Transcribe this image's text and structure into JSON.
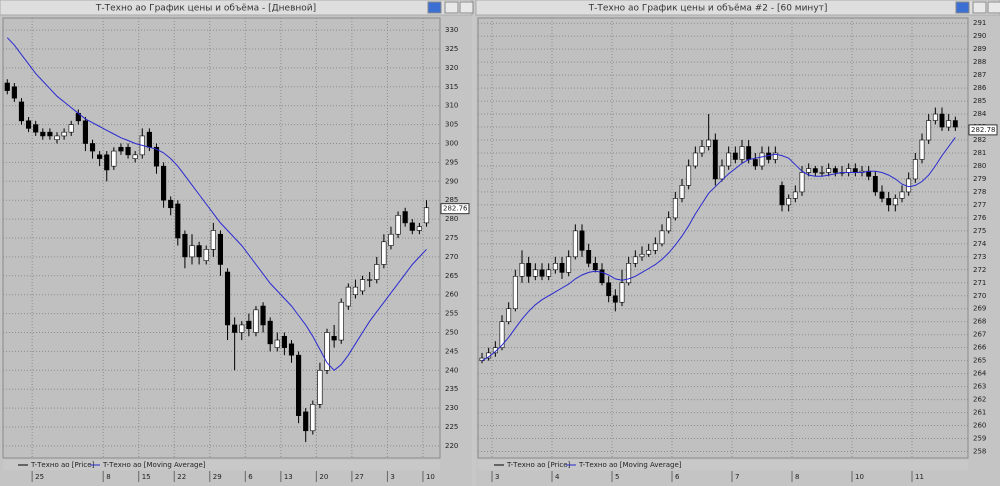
{
  "chart_data": [
    {
      "type": "candlestick",
      "title": "Т-Техно ао График цены и объёма - [Дневной]",
      "categories": [
        null,
        null,
        null,
        null,
        "25",
        null,
        null,
        null,
        null,
        null,
        null,
        null,
        null,
        null,
        "8",
        null,
        null,
        null,
        null,
        "15",
        null,
        null,
        null,
        null,
        "22",
        null,
        null,
        null,
        null,
        "29",
        null,
        null,
        null,
        null,
        "6",
        null,
        null,
        null,
        null,
        "13",
        null,
        null,
        null,
        null,
        "20",
        null,
        null,
        null,
        null,
        "27",
        null,
        null,
        null,
        null,
        "3",
        null,
        null,
        null,
        null,
        "10"
      ],
      "series": [
        {
          "name": "T-Техно ао [Price]",
          "color": "#000000",
          "open": [
            316,
            315,
            311,
            306,
            305,
            303,
            303,
            301,
            302,
            303,
            308,
            306,
            300,
            297,
            297,
            294,
            299,
            299,
            296,
            297,
            303,
            299,
            294,
            285,
            284,
            276,
            270,
            273,
            269,
            272,
            276,
            266,
            252,
            250,
            253,
            250,
            257,
            253,
            246,
            249,
            247,
            244,
            229,
            224,
            231,
            240,
            249,
            248,
            257,
            260,
            261,
            264,
            264,
            268,
            273,
            276,
            282,
            279,
            277,
            279
          ],
          "high": [
            317,
            316,
            312,
            307,
            306,
            304,
            304,
            303,
            304,
            306,
            309,
            307,
            301,
            298,
            298,
            299,
            300,
            300,
            298,
            304,
            304,
            300,
            295,
            286,
            285,
            277,
            276,
            274,
            273,
            279,
            277,
            267,
            254,
            253,
            255,
            257,
            258,
            254,
            250,
            250,
            248,
            245,
            230,
            232,
            242,
            251,
            252,
            259,
            263,
            264,
            265,
            266,
            270,
            276,
            278,
            282,
            283,
            280,
            279,
            285
          ],
          "low": [
            313,
            311,
            305,
            303,
            302,
            301,
            301,
            300,
            301,
            302,
            305,
            298,
            296,
            294,
            290,
            293,
            297,
            296,
            295,
            296,
            298,
            292,
            283,
            281,
            273,
            267,
            268,
            268,
            268,
            270,
            265,
            248,
            240,
            248,
            249,
            249,
            250,
            245,
            245,
            244,
            242,
            226,
            221,
            223,
            230,
            239,
            246,
            247,
            256,
            259,
            260,
            262,
            263,
            267,
            272,
            275,
            278,
            276,
            276,
            278
          ],
          "close": [
            314,
            312,
            306,
            304,
            303,
            302,
            302,
            302,
            303,
            305,
            306,
            300,
            298,
            296,
            293,
            298,
            298,
            297,
            297,
            302,
            299,
            294,
            285,
            283,
            275,
            270,
            273,
            270,
            272,
            277,
            268,
            252,
            250,
            252,
            251,
            256,
            252,
            247,
            248,
            246,
            244,
            228,
            224,
            231,
            240,
            250,
            248,
            258,
            262,
            262,
            264,
            264,
            268,
            274,
            276,
            281,
            279,
            277,
            278,
            283
          ]
        },
        {
          "name": "T-Техно ао [Moving Average]",
          "color": "#2a2ad0",
          "values": [
            328,
            326,
            323.5,
            321,
            318.5,
            316.5,
            314.5,
            312.5,
            311,
            309.5,
            308,
            306.5,
            305.5,
            304.5,
            303.5,
            302.5,
            301.5,
            300.8,
            300,
            299.5,
            299,
            298.5,
            297.5,
            296,
            294,
            291.5,
            289,
            286.5,
            284,
            281.5,
            279,
            277,
            275,
            273,
            270.5,
            268,
            265.5,
            263,
            261,
            259,
            257,
            254.5,
            252,
            249,
            245.5,
            242,
            240,
            241.5,
            244,
            247,
            250,
            253,
            255.5,
            258,
            260.5,
            263,
            265.5,
            268,
            270,
            272
          ]
        }
      ],
      "ylim": [
        216.8,
        333.2
      ],
      "yticks": [
        220,
        225,
        230,
        235,
        240,
        245,
        250,
        255,
        260,
        265,
        270,
        275,
        280,
        285,
        290,
        295,
        300,
        305,
        310,
        315,
        320,
        325,
        330
      ],
      "grid": true,
      "last_price": 282.76
    },
    {
      "type": "candlestick",
      "title": "Т-Техно ао График цены и объёма #2 - [60 минут]",
      "categories": [
        null,
        null,
        "3",
        null,
        null,
        null,
        null,
        null,
        null,
        null,
        null,
        "4",
        null,
        null,
        null,
        null,
        null,
        null,
        null,
        null,
        "5",
        null,
        null,
        null,
        null,
        null,
        null,
        null,
        null,
        "6",
        null,
        null,
        null,
        null,
        null,
        null,
        null,
        null,
        "7",
        null,
        null,
        null,
        null,
        null,
        null,
        null,
        null,
        "8",
        null,
        null,
        null,
        null,
        null,
        null,
        null,
        null,
        "10",
        null,
        null,
        null,
        null,
        null,
        null,
        null,
        null,
        "11",
        null,
        null,
        null,
        null,
        null,
        null
      ],
      "series": [
        {
          "name": "T-Техно ао [Price]",
          "color": "#000000",
          "open": [
            265,
            265.2,
            265.6,
            266,
            268,
            269,
            271.5,
            272.5,
            271.5,
            272,
            271.5,
            272,
            272.5,
            271.8,
            273,
            275,
            273.5,
            272.5,
            272,
            271,
            270,
            269.5,
            271,
            272.5,
            273,
            273.2,
            273.5,
            274,
            275,
            276,
            277.5,
            278.5,
            280,
            281,
            281.5,
            282,
            279,
            280,
            281,
            280.5,
            281.5,
            280.5,
            280,
            281,
            280.5,
            278.5,
            277,
            277.5,
            278,
            279.5,
            279.8,
            279.5,
            279.5,
            279.8,
            279.5,
            279.5,
            279.8,
            279.5,
            279.6,
            279.2,
            278,
            277.5,
            277,
            277.5,
            278,
            279,
            280.5,
            282,
            283.5,
            284,
            283,
            283.5
          ],
          "high": [
            265.6,
            266,
            266.5,
            268.5,
            269.5,
            272,
            273.5,
            273,
            272.5,
            272.5,
            272.5,
            273,
            273,
            273.5,
            275.5,
            275.5,
            274,
            273,
            272.5,
            271.5,
            270.5,
            272,
            273,
            273.5,
            273.8,
            274,
            274.5,
            275.5,
            276.5,
            278,
            279,
            280.5,
            281.5,
            282,
            284,
            282.5,
            280.5,
            281.5,
            281.5,
            282,
            282,
            281,
            281.5,
            281.5,
            281.5,
            278.8,
            277.8,
            278.5,
            280,
            280.2,
            280,
            280,
            280.2,
            280,
            280,
            280.2,
            280.2,
            280,
            280,
            279.6,
            278.5,
            278,
            277.8,
            278.5,
            279.5,
            281,
            282.5,
            284,
            284.5,
            284.5,
            284,
            283.8
          ],
          "low": [
            264.8,
            265,
            265.3,
            265.8,
            267.8,
            268.8,
            271,
            271,
            271.2,
            271.2,
            271.2,
            271.7,
            271.3,
            271.5,
            272.8,
            273,
            272.2,
            271.8,
            270.8,
            269.5,
            268.8,
            269.2,
            270.8,
            272.2,
            272.7,
            273,
            273.2,
            273.8,
            274.8,
            275.8,
            277.2,
            278.2,
            279.8,
            280.7,
            281.2,
            278.5,
            278.8,
            279.7,
            280.2,
            280.2,
            280.2,
            279.7,
            279.7,
            280.2,
            280.2,
            276.5,
            276.5,
            277.2,
            277.7,
            279.2,
            279.2,
            279.2,
            279.2,
            279.2,
            279.2,
            279.2,
            279.2,
            279.2,
            278.9,
            277.7,
            277.2,
            276.5,
            276.5,
            277.2,
            277.7,
            278.7,
            280.2,
            281.7,
            283.2,
            282.7,
            282.7,
            282.7
          ],
          "close": [
            265.2,
            265.6,
            266,
            268,
            269,
            271.5,
            272.5,
            271.5,
            272,
            271.5,
            272,
            272.5,
            271.8,
            273,
            275,
            273.5,
            272.5,
            272,
            271,
            270,
            269.5,
            271,
            272.5,
            273,
            273.2,
            273.5,
            274,
            275,
            276,
            277.5,
            278.5,
            280,
            281,
            281.5,
            282,
            279,
            280,
            281,
            280.5,
            281.5,
            280.5,
            280,
            281,
            280.5,
            281,
            277,
            277.5,
            278,
            279.5,
            279.8,
            279.5,
            279.5,
            279.8,
            279.5,
            279.5,
            279.8,
            279.5,
            279.6,
            279.2,
            278,
            277.5,
            277,
            277.5,
            278,
            279,
            280.5,
            282,
            283.5,
            284,
            283,
            283.5,
            283
          ]
        },
        {
          "name": "T-Техно ао [Moving Average]",
          "color": "#2a2ad0",
          "values": [
            265,
            265.3,
            265.7,
            266.2,
            266.8,
            267.5,
            268.2,
            268.8,
            269.3,
            269.7,
            270,
            270.3,
            270.6,
            270.9,
            271.3,
            271.6,
            271.8,
            271.9,
            271.8,
            271.6,
            271.3,
            271.2,
            271.3,
            271.5,
            271.8,
            272.1,
            272.4,
            272.8,
            273.3,
            273.9,
            274.6,
            275.4,
            276.3,
            277.1,
            277.9,
            278.4,
            278.9,
            279.4,
            279.8,
            280.2,
            280.5,
            280.6,
            280.7,
            280.8,
            280.9,
            280.8,
            280.6,
            280.1,
            279.6,
            279.3,
            279.2,
            279.2,
            279.3,
            279.4,
            279.5,
            279.5,
            279.5,
            279.5,
            279.6,
            279.6,
            279.5,
            279.3,
            279,
            278.6,
            278.4,
            278.5,
            278.8,
            279.3,
            280,
            280.8,
            281.5,
            282.2
          ]
        }
      ],
      "ylim": [
        257.5,
        291.4
      ],
      "yticks": [
        258,
        259,
        260,
        261,
        262,
        263,
        264,
        265,
        266,
        267,
        268,
        269,
        270,
        271,
        272,
        273,
        274,
        275,
        276,
        277,
        278,
        279,
        280,
        281,
        282,
        283,
        284,
        285,
        286,
        287,
        288,
        289,
        290,
        291
      ],
      "grid": true,
      "last_price": 282.78
    }
  ]
}
